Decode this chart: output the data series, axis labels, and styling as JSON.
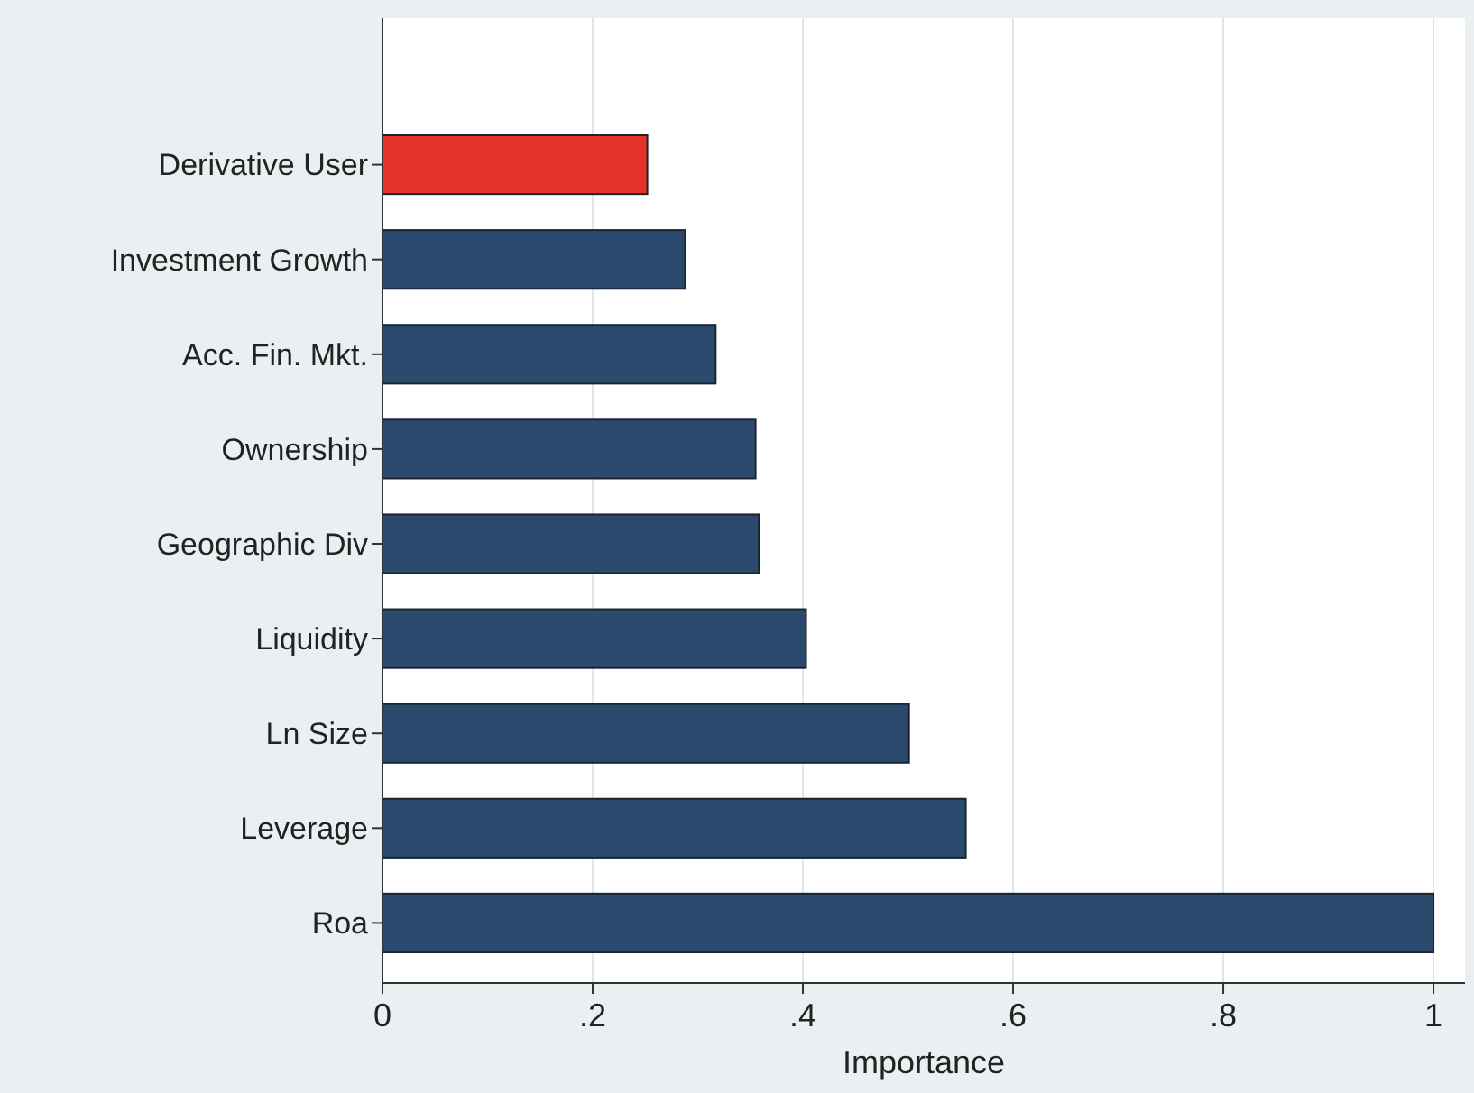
{
  "chart_data": {
    "type": "bar",
    "orientation": "horizontal",
    "xlabel": "Importance",
    "categories": [
      "Derivative User",
      "Investment Growth",
      "Acc. Fin. Mkt.",
      "Ownership",
      "Geographic Div",
      "Liquidity",
      "Ln Size",
      "Leverage",
      "Roa"
    ],
    "values": [
      0.252,
      0.288,
      0.317,
      0.355,
      0.358,
      0.403,
      0.501,
      0.555,
      1
    ],
    "colors": [
      "#e5352a",
      "#2b4a6e",
      "#2b4a6e",
      "#2b4a6e",
      "#2b4a6e",
      "#2b4a6e",
      "#2b4a6e",
      "#2b4a6e",
      "#2b4a6e"
    ],
    "xlim": [
      0,
      1.03
    ],
    "xticks": [
      0,
      {
        "value": 0.2,
        "label": ".2"
      },
      {
        "value": 0.4,
        "label": ".4"
      },
      {
        "value": 0.6,
        "label": ".6"
      },
      {
        "value": 0.8,
        "label": ".8"
      },
      1
    ],
    "grid": "x"
  }
}
